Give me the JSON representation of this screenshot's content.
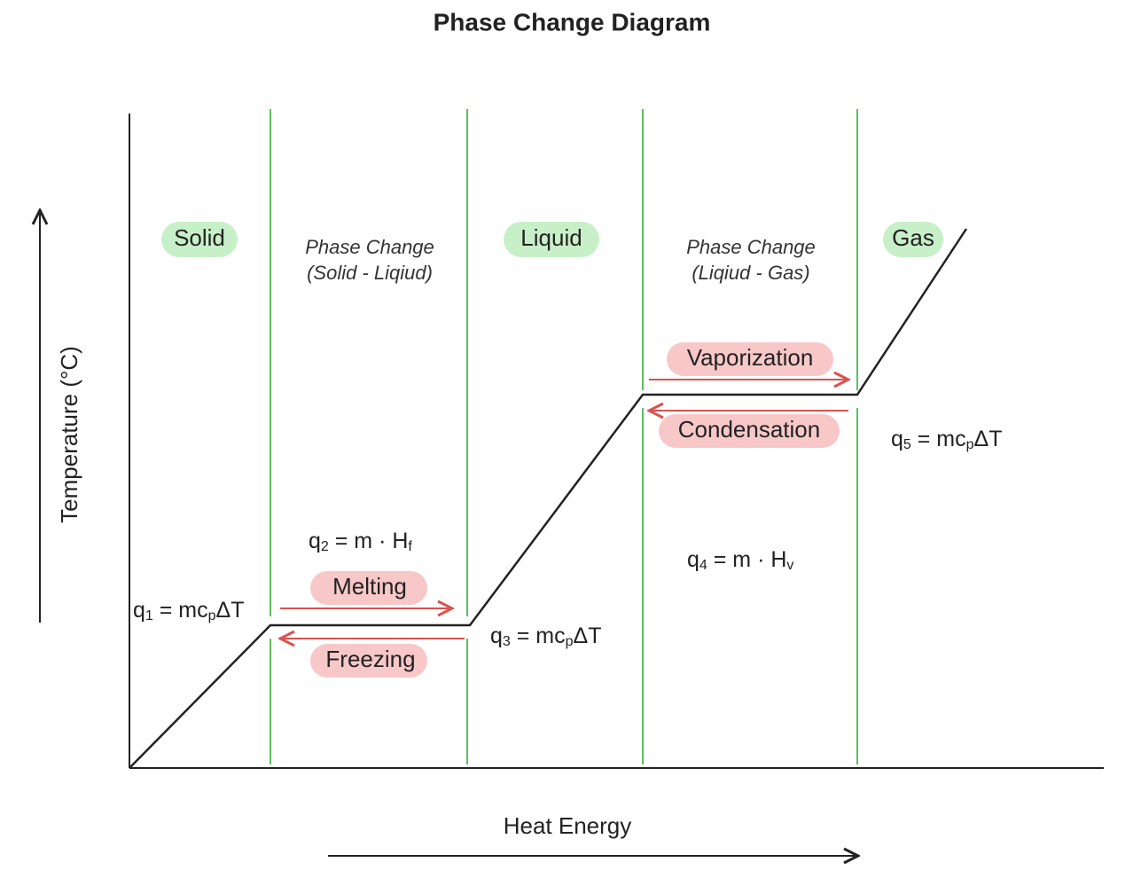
{
  "title": "Phase Change Diagram",
  "axes": {
    "y_label": "Temperature (°C)",
    "x_label": "Heat Energy"
  },
  "phases": [
    "Solid",
    "Liquid",
    "Gas"
  ],
  "phase_changes": [
    [
      "Phase Change",
      "(Solid - Liqiud)"
    ],
    [
      "Phase Change",
      "(Liqiud - Gas)"
    ]
  ],
  "processes": [
    "Melting",
    "Freezing",
    "Vaporization",
    "Condensation"
  ],
  "equations": [
    [
      "q",
      "1",
      " = mc",
      "p",
      "ΔT"
    ],
    [
      "q",
      "2",
      " = m · H",
      "f"
    ],
    [
      "q",
      "3",
      " = mc",
      "p",
      "ΔT"
    ],
    [
      "q",
      "4",
      " = m · H",
      "v"
    ],
    [
      "q",
      "5",
      " = mc",
      "p",
      "ΔT"
    ]
  ]
}
